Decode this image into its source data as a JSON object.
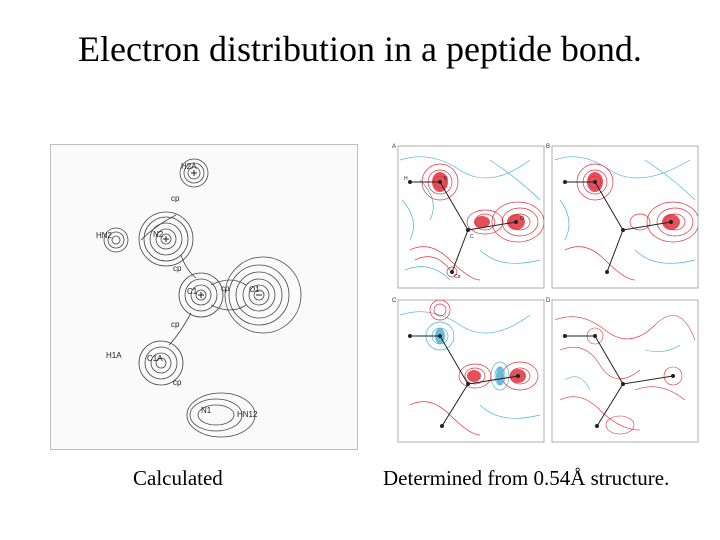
{
  "slide": {
    "title": "Electron distribution in a peptide bond.",
    "captions": {
      "left": "Calculated",
      "right": "Determined from 0.54Å structure."
    }
  },
  "left_figure": {
    "atom_labels": [
      "H2A",
      "cp",
      "N2",
      "HN2",
      "cp",
      "C1",
      "cp",
      "O1",
      "cp",
      "H1A",
      "C1A",
      "cp",
      "N1",
      "HN12"
    ]
  },
  "right_figure": {
    "panel_labels": [
      "A",
      "B",
      "C",
      "D"
    ],
    "atom_labels": {
      "N": "N",
      "C": "C",
      "O": "O",
      "H": "H",
      "Ca": "Cα"
    },
    "colors": {
      "positive_contour": "#e0313d",
      "negative_contour": "#4bb3d4",
      "frame": "#9a9a9a"
    }
  }
}
